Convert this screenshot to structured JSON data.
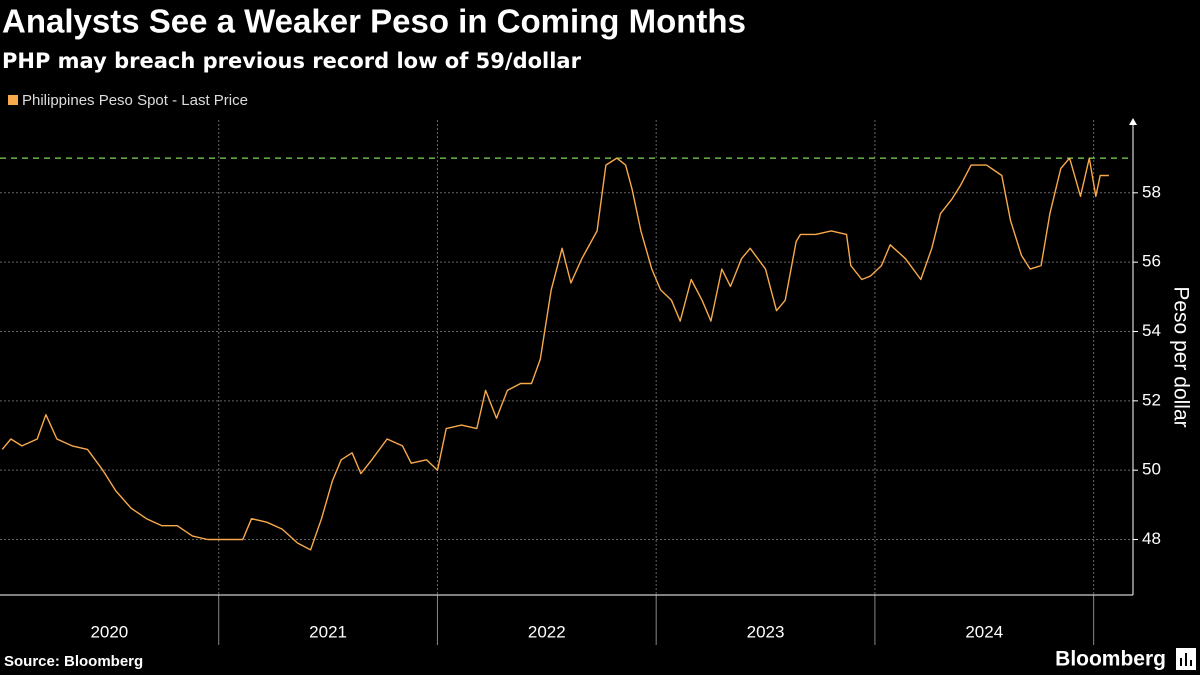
{
  "chart_data": {
    "type": "line",
    "title": "Analysts See a Weaker Peso in Coming Months",
    "subtitle": "PHP may breach previous record low of 59/dollar",
    "y_axis_label": "Peso per dollar",
    "source": "Source: Bloomberg",
    "brand": "Bloomberg",
    "x": [
      2020.01,
      2020.05,
      2020.1,
      2020.17,
      2020.21,
      2020.26,
      2020.33,
      2020.4,
      2020.47,
      2020.53,
      2020.6,
      2020.67,
      2020.74,
      2020.81,
      2020.88,
      2020.95,
      2021.01,
      2021.11,
      2021.15,
      2021.22,
      2021.29,
      2021.36,
      2021.42,
      2021.47,
      2021.52,
      2021.56,
      2021.61,
      2021.65,
      2021.7,
      2021.77,
      2021.84,
      2021.88,
      2021.95,
      2022.0,
      2022.04,
      2022.11,
      2022.18,
      2022.22,
      2022.27,
      2022.32,
      2022.38,
      2022.43,
      2022.47,
      2022.52,
      2022.57,
      2022.61,
      2022.66,
      2022.73,
      2022.77,
      2022.82,
      2022.86,
      2022.89,
      2022.93,
      2022.98,
      2023.02,
      2023.07,
      2023.11,
      2023.16,
      2023.21,
      2023.25,
      2023.3,
      2023.34,
      2023.39,
      2023.43,
      2023.5,
      2023.55,
      2023.59,
      2023.64,
      2023.66,
      2023.73,
      2023.8,
      2023.87,
      2023.89,
      2023.94,
      2023.98,
      2024.03,
      2024.07,
      2024.14,
      2024.21,
      2024.26,
      2024.3,
      2024.35,
      2024.39,
      2024.44,
      2024.51,
      2024.58,
      2024.62,
      2024.67,
      2024.71,
      2024.76,
      2024.8,
      2024.85,
      2024.89,
      2024.94,
      2024.98,
      2025.01,
      2025.03,
      2025.07
    ],
    "series": [
      {
        "name": "Philippines Peso Spot - Last Price",
        "color": "#f7a94b",
        "values": [
          50.6,
          50.9,
          50.7,
          50.9,
          51.6,
          50.9,
          50.7,
          50.6,
          50.0,
          49.4,
          48.9,
          48.6,
          48.4,
          48.4,
          48.1,
          48.0,
          48.0,
          48.0,
          48.6,
          48.5,
          48.3,
          47.9,
          47.7,
          48.6,
          49.7,
          50.3,
          50.5,
          49.9,
          50.3,
          50.9,
          50.7,
          50.2,
          50.3,
          50.0,
          51.2,
          51.3,
          51.2,
          52.3,
          51.5,
          52.3,
          52.5,
          52.5,
          53.2,
          55.2,
          56.4,
          55.4,
          56.1,
          56.9,
          58.8,
          59.0,
          58.8,
          58.1,
          56.9,
          55.8,
          55.2,
          54.9,
          54.3,
          55.5,
          54.9,
          54.3,
          55.8,
          55.3,
          56.1,
          56.4,
          55.8,
          54.6,
          54.9,
          56.6,
          56.8,
          56.8,
          56.9,
          56.8,
          55.9,
          55.5,
          55.6,
          55.9,
          56.5,
          56.1,
          55.5,
          56.4,
          57.4,
          57.8,
          58.2,
          58.8,
          58.8,
          58.5,
          57.2,
          56.2,
          55.8,
          55.9,
          57.4,
          58.7,
          59.0,
          57.9,
          59.0,
          57.9,
          58.5,
          58.5
        ]
      }
    ],
    "reference_line": {
      "value": 59,
      "color": "#7ed957"
    },
    "xlim": [
      2020.0,
      2025.18
    ],
    "xticks": [
      {
        "value": 2020.5,
        "label": "2020"
      },
      {
        "value": 2021.5,
        "label": "2021"
      },
      {
        "value": 2022.5,
        "label": "2022"
      },
      {
        "value": 2023.5,
        "label": "2023"
      },
      {
        "value": 2024.5,
        "label": "2024"
      }
    ],
    "xgrid": [
      2021,
      2022,
      2023,
      2024,
      2025
    ],
    "ylim": [
      46.4,
      60.1
    ],
    "yticks": [
      48,
      50,
      52,
      54,
      56,
      58
    ],
    "grid": true
  }
}
